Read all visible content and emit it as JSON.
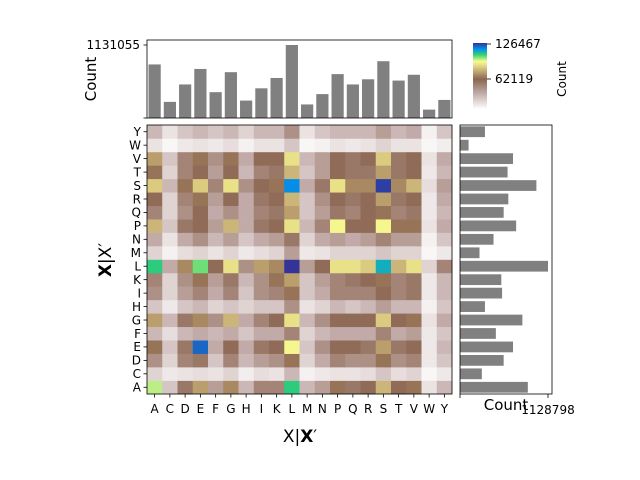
{
  "chart_data": {
    "type": "heatmap",
    "amino_acids": [
      "A",
      "C",
      "D",
      "E",
      "F",
      "G",
      "H",
      "I",
      "K",
      "L",
      "M",
      "N",
      "P",
      "Q",
      "R",
      "S",
      "T",
      "V",
      "W",
      "Y"
    ],
    "x_categories": [
      "A",
      "C",
      "D",
      "E",
      "F",
      "G",
      "H",
      "I",
      "K",
      "L",
      "M",
      "N",
      "P",
      "Q",
      "R",
      "S",
      "T",
      "V",
      "W",
      "Y"
    ],
    "y_categories": [
      "A",
      "C",
      "D",
      "E",
      "F",
      "G",
      "H",
      "I",
      "K",
      "L",
      "M",
      "N",
      "P",
      "Q",
      "R",
      "S",
      "T",
      "V",
      "W",
      "Y"
    ],
    "xlabel_parts": [
      "X|",
      "X",
      "′"
    ],
    "ylabel_parts": [
      "X",
      "|X′"
    ],
    "colorbar": {
      "label": "Count",
      "ticks": [
        "126467",
        "62119"
      ],
      "min": 0,
      "max": 126467
    },
    "top_marginal": {
      "ylabel": "Count",
      "ytick": "1131055",
      "max": 1131055
    },
    "right_marginal": {
      "xlabel": "Count",
      "xtick": "1128798",
      "max": 1128798
    },
    "x_marginal_counts": [
      830000,
      250000,
      520000,
      760000,
      400000,
      710000,
      270000,
      460000,
      620000,
      1131055,
      210000,
      370000,
      680000,
      520000,
      600000,
      880000,
      580000,
      670000,
      130000,
      280000
    ],
    "y_marginal_counts": [
      870000,
      280000,
      560000,
      680000,
      460000,
      800000,
      320000,
      540000,
      530000,
      1128798,
      250000,
      430000,
      720000,
      560000,
      620000,
      980000,
      610000,
      680000,
      110000,
      320000
    ],
    "matrix": [
      [
        95000,
        20000,
        50000,
        70000,
        35000,
        65000,
        25000,
        45000,
        45000,
        105000,
        25000,
        35000,
        60000,
        50000,
        55000,
        75000,
        55000,
        60000,
        10000,
        25000
      ],
      [
        15000,
        8000,
        10000,
        12000,
        10000,
        15000,
        6000,
        12000,
        10000,
        25000,
        5000,
        8000,
        10000,
        10000,
        12000,
        20000,
        12000,
        15000,
        3000,
        8000
      ],
      [
        40000,
        15000,
        45000,
        50000,
        20000,
        45000,
        25000,
        35000,
        40000,
        60000,
        15000,
        30000,
        45000,
        40000,
        40000,
        60000,
        40000,
        45000,
        8000,
        20000
      ],
      [
        60000,
        20000,
        50000,
        120000,
        30000,
        55000,
        30000,
        50000,
        55000,
        90000,
        20000,
        40000,
        55000,
        55000,
        50000,
        70000,
        50000,
        55000,
        8000,
        25000
      ],
      [
        25000,
        12000,
        25000,
        30000,
        25000,
        30000,
        20000,
        30000,
        30000,
        45000,
        15000,
        25000,
        30000,
        30000,
        30000,
        45000,
        30000,
        35000,
        8000,
        20000
      ],
      [
        70000,
        25000,
        50000,
        65000,
        40000,
        75000,
        30000,
        45000,
        55000,
        85000,
        25000,
        40000,
        55000,
        55000,
        55000,
        80000,
        55000,
        60000,
        10000,
        30000
      ],
      [
        20000,
        8000,
        20000,
        25000,
        15000,
        20000,
        15000,
        20000,
        20000,
        40000,
        10000,
        15000,
        25000,
        20000,
        25000,
        35000,
        25000,
        25000,
        5000,
        20000
      ],
      [
        40000,
        15000,
        35000,
        45000,
        30000,
        45000,
        20000,
        40000,
        45000,
        60000,
        20000,
        30000,
        45000,
        45000,
        45000,
        55000,
        45000,
        50000,
        8000,
        25000
      ],
      [
        45000,
        15000,
        40000,
        60000,
        35000,
        50000,
        25000,
        40000,
        60000,
        70000,
        20000,
        35000,
        45000,
        50000,
        55000,
        60000,
        45000,
        50000,
        8000,
        25000
      ],
      [
        105000,
        30000,
        65000,
        100000,
        55000,
        85000,
        40000,
        70000,
        65000,
        126467,
        35000,
        55000,
        85000,
        85000,
        80000,
        110000,
        75000,
        85000,
        15000,
        45000
      ],
      [
        15000,
        5000,
        12000,
        15000,
        10000,
        15000,
        8000,
        12000,
        15000,
        35000,
        8000,
        10000,
        15000,
        15000,
        15000,
        20000,
        15000,
        15000,
        3000,
        8000
      ],
      [
        30000,
        10000,
        30000,
        40000,
        25000,
        35000,
        20000,
        30000,
        35000,
        50000,
        15000,
        30000,
        35000,
        30000,
        35000,
        45000,
        35000,
        35000,
        5000,
        20000
      ],
      [
        75000,
        20000,
        50000,
        55000,
        35000,
        75000,
        30000,
        50000,
        55000,
        85000,
        25000,
        45000,
        90000,
        55000,
        55000,
        90000,
        60000,
        60000,
        10000,
        30000
      ],
      [
        45000,
        15000,
        40000,
        55000,
        30000,
        40000,
        30000,
        45000,
        50000,
        70000,
        20000,
        35000,
        50000,
        45000,
        55000,
        60000,
        45000,
        50000,
        8000,
        25000
      ],
      [
        55000,
        15000,
        45000,
        60000,
        35000,
        55000,
        30000,
        50000,
        55000,
        75000,
        20000,
        40000,
        55000,
        50000,
        55000,
        70000,
        50000,
        55000,
        8000,
        30000
      ],
      [
        80000,
        25000,
        60000,
        80000,
        45000,
        85000,
        40000,
        55000,
        60000,
        115000,
        30000,
        50000,
        85000,
        65000,
        65000,
        125000,
        65000,
        75000,
        12000,
        35000
      ],
      [
        60000,
        15000,
        45000,
        55000,
        35000,
        55000,
        25000,
        45000,
        50000,
        75000,
        20000,
        35000,
        55000,
        50000,
        50000,
        70000,
        50000,
        55000,
        8000,
        25000
      ],
      [
        70000,
        20000,
        45000,
        60000,
        40000,
        60000,
        30000,
        55000,
        55000,
        85000,
        25000,
        35000,
        55000,
        50000,
        55000,
        80000,
        50000,
        55000,
        10000,
        30000
      ],
      [
        10000,
        3000,
        8000,
        10000,
        8000,
        12000,
        5000,
        10000,
        10000,
        20000,
        3000,
        5000,
        10000,
        8000,
        10000,
        15000,
        10000,
        10000,
        3000,
        6000
      ],
      [
        25000,
        10000,
        20000,
        25000,
        20000,
        25000,
        15000,
        25000,
        25000,
        40000,
        10000,
        20000,
        25000,
        25000,
        25000,
        35000,
        25000,
        30000,
        5000,
        20000
      ]
    ]
  }
}
